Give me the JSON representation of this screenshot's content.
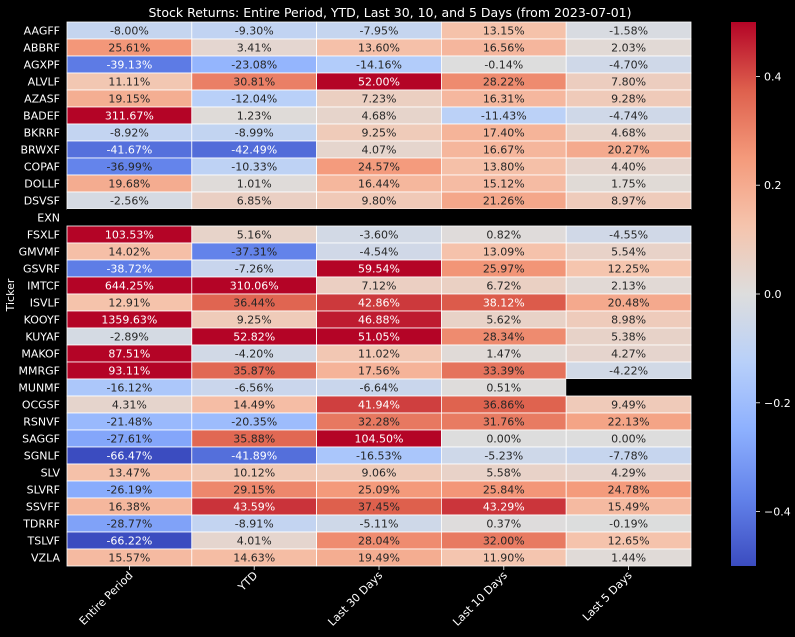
{
  "chart_data": {
    "type": "heatmap",
    "title": "Stock Returns: Entire Period, YTD, Last 30, 10, and 5 Days (from 2023-07-01)",
    "xlabel": "",
    "ylabel": "Ticker",
    "columns": [
      "Entire Period",
      "YTD",
      "Last 30 Days",
      "Last 10 Days",
      "Last 5 Days"
    ],
    "rows": [
      "AAGFF",
      "ABBRF",
      "AGXPF",
      "ALVLF",
      "AZASF",
      "BADEF",
      "BKRRF",
      "BRWXF",
      "COPAF",
      "DOLLF",
      "DSVSF",
      "EXN",
      "FSXLF",
      "GMVMF",
      "GSVRF",
      "IMTCF",
      "ISVLF",
      "KOOYF",
      "KUYAF",
      "MAKOF",
      "MMRGF",
      "MUNMF",
      "OCGSF",
      "RSNVF",
      "SAGGF",
      "SGNLF",
      "SLV",
      "SLVRF",
      "SSVFF",
      "TDRRF",
      "TSLVF",
      "VZLA"
    ],
    "values": [
      [
        -0.08,
        -0.093,
        -0.0795,
        0.1315,
        -0.0158
      ],
      [
        0.2561,
        0.0341,
        0.136,
        0.1656,
        0.0203
      ],
      [
        -0.3913,
        -0.2308,
        -0.1416,
        -0.0014,
        -0.047
      ],
      [
        0.1111,
        0.3081,
        0.52,
        0.2822,
        0.078
      ],
      [
        0.1915,
        -0.1204,
        0.0723,
        0.1631,
        0.0928
      ],
      [
        3.1167,
        0.0123,
        0.0468,
        -0.1143,
        -0.0474
      ],
      [
        -0.0892,
        -0.0899,
        0.0925,
        0.174,
        0.0468
      ],
      [
        -0.4167,
        -0.4249,
        0.0407,
        0.1667,
        0.2027
      ],
      [
        -0.3699,
        -0.1033,
        0.2457,
        0.138,
        0.044
      ],
      [
        0.1968,
        0.0101,
        0.1644,
        0.1512,
        0.0175
      ],
      [
        -0.0256,
        0.0685,
        0.098,
        0.2126,
        0.0897
      ],
      [
        null,
        null,
        null,
        null,
        null
      ],
      [
        1.0353,
        0.0516,
        -0.036,
        0.0082,
        -0.0455
      ],
      [
        0.1402,
        -0.3731,
        -0.0454,
        0.1309,
        0.0554
      ],
      [
        -0.3872,
        -0.0726,
        0.5954,
        0.2597,
        0.1225
      ],
      [
        6.4425,
        3.1006,
        0.0712,
        0.0672,
        0.0213
      ],
      [
        0.1291,
        0.3644,
        0.4286,
        0.3812,
        0.2048
      ],
      [
        13.5963,
        0.0925,
        0.4688,
        0.0562,
        0.0898
      ],
      [
        -0.0289,
        0.5282,
        0.5105,
        0.2834,
        0.0538
      ],
      [
        0.8751,
        -0.042,
        0.1102,
        0.0147,
        0.0427
      ],
      [
        0.9311,
        0.3587,
        0.1756,
        0.3339,
        -0.0422
      ],
      [
        -0.1612,
        -0.0656,
        -0.0664,
        0.0051,
        null
      ],
      [
        0.0431,
        0.1449,
        0.4194,
        0.3686,
        0.0949
      ],
      [
        -0.2148,
        -0.2035,
        0.3228,
        0.3176,
        0.2213
      ],
      [
        -0.2761,
        0.3588,
        1.045,
        0.0,
        0.0
      ],
      [
        -0.6647,
        -0.4189,
        -0.1653,
        -0.0523,
        -0.0778
      ],
      [
        0.1347,
        0.1012,
        0.0906,
        0.0558,
        0.0429
      ],
      [
        -0.2619,
        0.2915,
        0.2509,
        0.2584,
        0.2478
      ],
      [
        0.1638,
        0.4359,
        0.3745,
        0.4329,
        0.1549
      ],
      [
        -0.2877,
        -0.0891,
        -0.0511,
        0.0037,
        -0.0019
      ],
      [
        -0.6622,
        0.0401,
        0.2804,
        0.32,
        0.1265
      ],
      [
        0.1557,
        0.1463,
        0.1949,
        0.119,
        0.0144
      ]
    ],
    "labels": [
      [
        "-8.00%",
        "-9.30%",
        "-7.95%",
        "13.15%",
        "-1.58%"
      ],
      [
        "25.61%",
        "3.41%",
        "13.60%",
        "16.56%",
        "2.03%"
      ],
      [
        "-39.13%",
        "-23.08%",
        "-14.16%",
        "-0.14%",
        "-4.70%"
      ],
      [
        "11.11%",
        "30.81%",
        "52.00%",
        "28.22%",
        "7.80%"
      ],
      [
        "19.15%",
        "-12.04%",
        "7.23%",
        "16.31%",
        "9.28%"
      ],
      [
        "311.67%",
        "1.23%",
        "4.68%",
        "-11.43%",
        "-4.74%"
      ],
      [
        "-8.92%",
        "-8.99%",
        "9.25%",
        "17.40%",
        "4.68%"
      ],
      [
        "-41.67%",
        "-42.49%",
        "4.07%",
        "16.67%",
        "20.27%"
      ],
      [
        "-36.99%",
        "-10.33%",
        "24.57%",
        "13.80%",
        "4.40%"
      ],
      [
        "19.68%",
        "1.01%",
        "16.44%",
        "15.12%",
        "1.75%"
      ],
      [
        "-2.56%",
        "6.85%",
        "9.80%",
        "21.26%",
        "8.97%"
      ],
      [
        "",
        "",
        "",
        "",
        ""
      ],
      [
        "103.53%",
        "5.16%",
        "-3.60%",
        "0.82%",
        "-4.55%"
      ],
      [
        "14.02%",
        "-37.31%",
        "-4.54%",
        "13.09%",
        "5.54%"
      ],
      [
        "-38.72%",
        "-7.26%",
        "59.54%",
        "25.97%",
        "12.25%"
      ],
      [
        "644.25%",
        "310.06%",
        "7.12%",
        "6.72%",
        "2.13%"
      ],
      [
        "12.91%",
        "36.44%",
        "42.86%",
        "38.12%",
        "20.48%"
      ],
      [
        "1359.63%",
        "9.25%",
        "46.88%",
        "5.62%",
        "8.98%"
      ],
      [
        "-2.89%",
        "52.82%",
        "51.05%",
        "28.34%",
        "5.38%"
      ],
      [
        "87.51%",
        "-4.20%",
        "11.02%",
        "1.47%",
        "4.27%"
      ],
      [
        "93.11%",
        "35.87%",
        "17.56%",
        "33.39%",
        "-4.22%"
      ],
      [
        "-16.12%",
        "-6.56%",
        "-6.64%",
        "0.51%",
        ""
      ],
      [
        "4.31%",
        "14.49%",
        "41.94%",
        "36.86%",
        "9.49%"
      ],
      [
        "-21.48%",
        "-20.35%",
        "32.28%",
        "31.76%",
        "22.13%"
      ],
      [
        "-27.61%",
        "35.88%",
        "104.50%",
        "0.00%",
        "0.00%"
      ],
      [
        "-66.47%",
        "-41.89%",
        "-16.53%",
        "-5.23%",
        "-7.78%"
      ],
      [
        "13.47%",
        "10.12%",
        "9.06%",
        "5.58%",
        "4.29%"
      ],
      [
        "-26.19%",
        "29.15%",
        "25.09%",
        "25.84%",
        "24.78%"
      ],
      [
        "16.38%",
        "43.59%",
        "37.45%",
        "43.29%",
        "15.49%"
      ],
      [
        "-28.77%",
        "-8.91%",
        "-5.11%",
        "0.37%",
        "-0.19%"
      ],
      [
        "-66.22%",
        "4.01%",
        "28.04%",
        "32.00%",
        "12.65%"
      ],
      [
        "15.57%",
        "14.63%",
        "19.49%",
        "11.90%",
        "1.44%"
      ]
    ],
    "colorbar": {
      "colormap": "coolwarm",
      "range": [
        -0.5,
        0.5
      ],
      "ticks": [
        -0.4,
        -0.2,
        0.0,
        0.2,
        0.4
      ],
      "tick_labels": [
        "−0.4",
        "−0.2",
        "0.0",
        "0.2",
        "0.4"
      ]
    },
    "missing_color": "#000000",
    "background": "#000000",
    "text_color": "#ffffff"
  }
}
